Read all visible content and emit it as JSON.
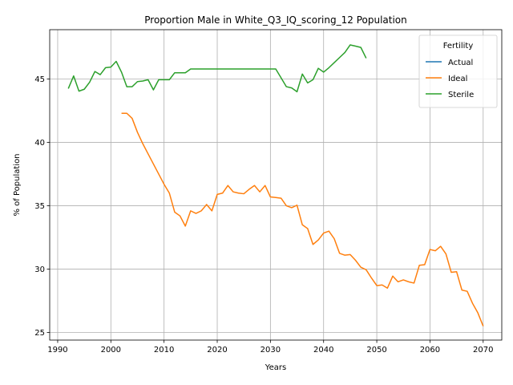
{
  "chart_data": {
    "type": "line",
    "title": "Proportion Male in White_Q3_IQ_scoring_12 Population",
    "xlabel": "Years",
    "ylabel": "% of Population",
    "xlim": [
      1988.5,
      2073.5
    ],
    "ylim": [
      24.4,
      48.9
    ],
    "xticks": [
      1990,
      2000,
      2010,
      2020,
      2030,
      2040,
      2050,
      2060,
      2070
    ],
    "yticks": [
      25,
      30,
      35,
      40,
      45
    ],
    "grid": true,
    "legend": {
      "title": "Fertility",
      "placement": "top-right"
    },
    "series": [
      {
        "name": "Actual",
        "color": "#1f77b4",
        "points": []
      },
      {
        "name": "Ideal",
        "color": "#ff7f0e",
        "points": [
          [
            2002,
            42.3
          ],
          [
            2003,
            42.3
          ],
          [
            2004,
            41.9
          ],
          [
            2005,
            40.8
          ],
          [
            2006,
            39.9
          ],
          [
            2007,
            39.1
          ],
          [
            2008,
            38.3
          ],
          [
            2009,
            37.5
          ],
          [
            2010,
            36.7
          ],
          [
            2011,
            36.0
          ],
          [
            2012,
            34.5
          ],
          [
            2013,
            34.2
          ],
          [
            2014,
            33.4
          ],
          [
            2015,
            34.6
          ],
          [
            2016,
            34.4
          ],
          [
            2017,
            34.6
          ],
          [
            2018,
            35.1
          ],
          [
            2019,
            34.6
          ],
          [
            2020,
            35.9
          ],
          [
            2021,
            36.0
          ],
          [
            2022,
            36.6
          ],
          [
            2023,
            36.1
          ],
          [
            2024,
            36.0
          ],
          [
            2025,
            35.95
          ],
          [
            2026,
            36.3
          ],
          [
            2027,
            36.6
          ],
          [
            2028,
            36.1
          ],
          [
            2029,
            36.6
          ],
          [
            2030,
            35.7
          ],
          [
            2031,
            35.65
          ],
          [
            2032,
            35.6
          ],
          [
            2033,
            35.0
          ],
          [
            2034,
            34.85
          ],
          [
            2035,
            35.05
          ],
          [
            2036,
            33.5
          ],
          [
            2037,
            33.2
          ],
          [
            2038,
            31.95
          ],
          [
            2039,
            32.3
          ],
          [
            2040,
            32.85
          ],
          [
            2041,
            33.0
          ],
          [
            2042,
            32.4
          ],
          [
            2043,
            31.25
          ],
          [
            2044,
            31.1
          ],
          [
            2045,
            31.15
          ],
          [
            2046,
            30.7
          ],
          [
            2047,
            30.15
          ],
          [
            2048,
            29.95
          ],
          [
            2049,
            29.3
          ],
          [
            2050,
            28.7
          ],
          [
            2051,
            28.75
          ],
          [
            2052,
            28.5
          ],
          [
            2053,
            29.45
          ],
          [
            2054,
            29.0
          ],
          [
            2055,
            29.15
          ],
          [
            2056,
            29.0
          ],
          [
            2057,
            28.9
          ],
          [
            2058,
            30.3
          ],
          [
            2059,
            30.35
          ],
          [
            2060,
            31.55
          ],
          [
            2061,
            31.45
          ],
          [
            2062,
            31.8
          ],
          [
            2063,
            31.2
          ],
          [
            2064,
            29.75
          ],
          [
            2065,
            29.8
          ],
          [
            2066,
            28.35
          ],
          [
            2067,
            28.25
          ],
          [
            2068,
            27.3
          ],
          [
            2069,
            26.55
          ],
          [
            2070,
            25.5
          ]
        ]
      },
      {
        "name": "Sterile",
        "color": "#2ca02c",
        "points": [
          [
            1992,
            44.25
          ],
          [
            1993,
            45.25
          ],
          [
            1994,
            44.05
          ],
          [
            1995,
            44.2
          ],
          [
            1996,
            44.75
          ],
          [
            1997,
            45.6
          ],
          [
            1998,
            45.35
          ],
          [
            1999,
            45.9
          ],
          [
            2000,
            45.95
          ],
          [
            2001,
            46.4
          ],
          [
            2002,
            45.55
          ],
          [
            2003,
            44.4
          ],
          [
            2004,
            44.4
          ],
          [
            2005,
            44.8
          ],
          [
            2006,
            44.85
          ],
          [
            2007,
            44.95
          ],
          [
            2008,
            44.15
          ],
          [
            2009,
            44.95
          ],
          [
            2010,
            44.95
          ],
          [
            2011,
            44.95
          ],
          [
            2012,
            45.5
          ],
          [
            2013,
            45.5
          ],
          [
            2014,
            45.5
          ],
          [
            2015,
            45.8
          ],
          [
            2016,
            45.8
          ],
          [
            2017,
            45.8
          ],
          [
            2018,
            45.8
          ],
          [
            2019,
            45.8
          ],
          [
            2020,
            45.8
          ],
          [
            2021,
            45.8
          ],
          [
            2022,
            45.8
          ],
          [
            2023,
            45.8
          ],
          [
            2024,
            45.8
          ],
          [
            2025,
            45.8
          ],
          [
            2026,
            45.8
          ],
          [
            2027,
            45.8
          ],
          [
            2028,
            45.8
          ],
          [
            2029,
            45.8
          ],
          [
            2030,
            45.8
          ],
          [
            2031,
            45.8
          ],
          [
            2032,
            45.1
          ],
          [
            2033,
            44.4
          ],
          [
            2034,
            44.3
          ],
          [
            2035,
            44.0
          ],
          [
            2036,
            45.4
          ],
          [
            2037,
            44.7
          ],
          [
            2038,
            44.95
          ],
          [
            2039,
            45.85
          ],
          [
            2040,
            45.55
          ],
          [
            2041,
            45.9
          ],
          [
            2042,
            46.3
          ],
          [
            2043,
            46.7
          ],
          [
            2044,
            47.1
          ],
          [
            2045,
            47.7
          ],
          [
            2046,
            47.6
          ],
          [
            2047,
            47.5
          ],
          [
            2048,
            46.65
          ]
        ]
      }
    ]
  }
}
